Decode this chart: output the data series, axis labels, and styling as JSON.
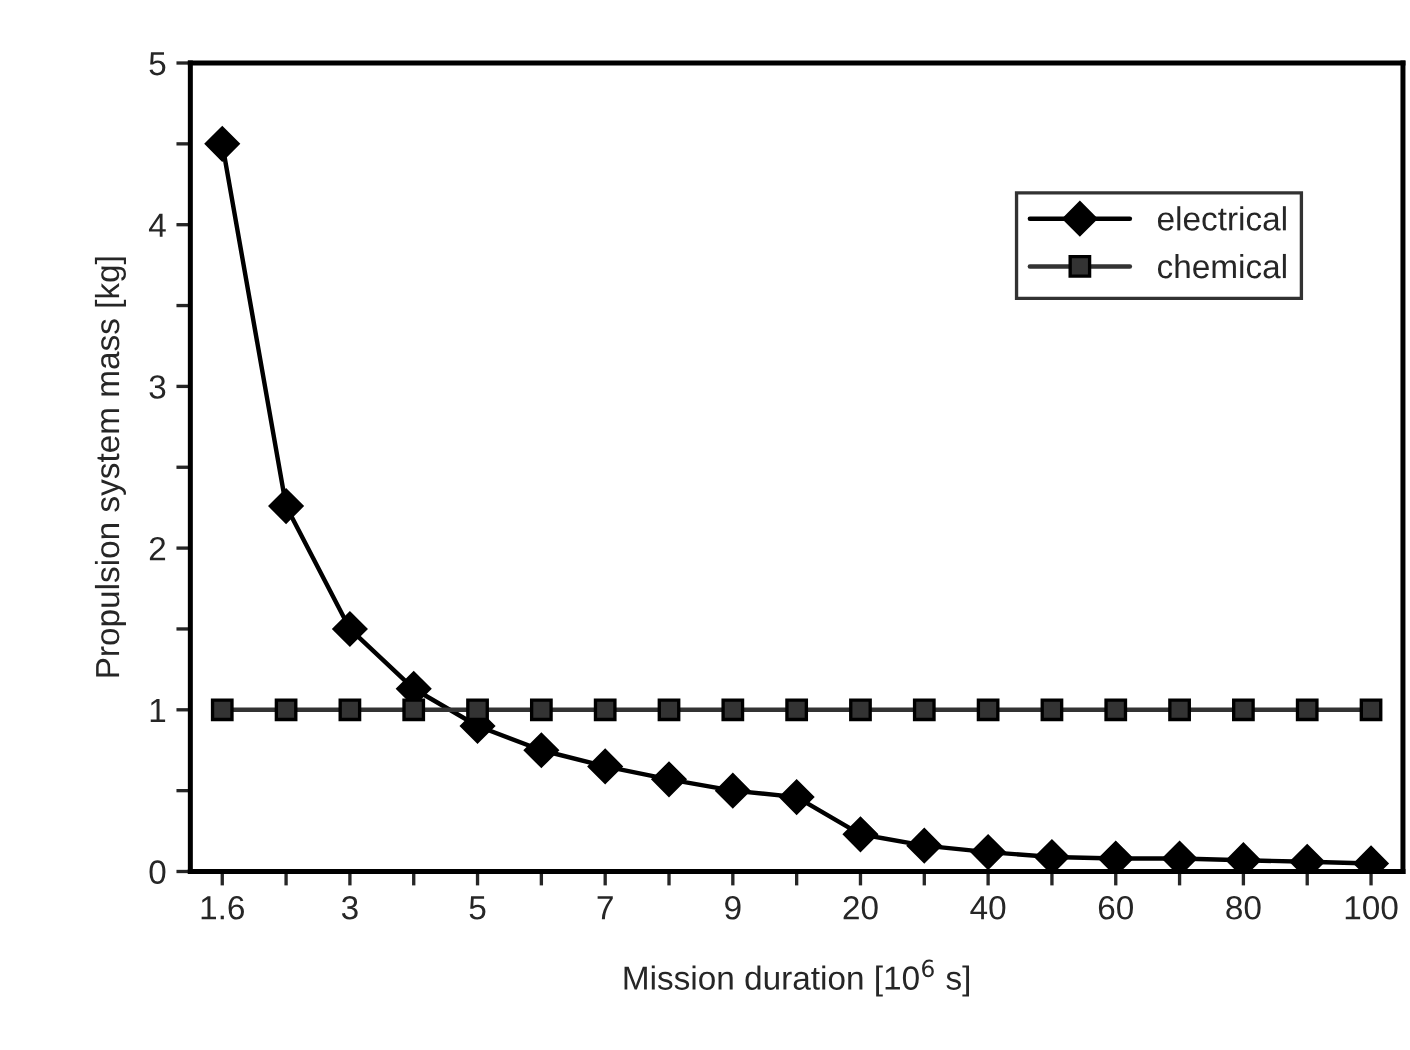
{
  "chart_data": {
    "type": "line",
    "xlabel": "Mission duration [10$^{6}$ s]",
    "ylabel": "Propulsion system mass [kg]",
    "categories": [
      "1.6",
      null,
      "3",
      null,
      "5",
      null,
      "7",
      null,
      "9",
      null,
      "20",
      null,
      "40",
      null,
      "60",
      null,
      "80",
      null,
      "100"
    ],
    "series": [
      {
        "name": "electrical",
        "color": "#000000",
        "marker": "diamond",
        "values": [
          4.5,
          2.26,
          1.5,
          1.13,
          0.9,
          0.75,
          0.65,
          0.57,
          0.5,
          0.46,
          0.23,
          0.16,
          0.12,
          0.09,
          0.08,
          0.08,
          0.07,
          0.06,
          0.05
        ]
      },
      {
        "name": "chemical",
        "color": "#333333",
        "marker": "square",
        "values": [
          1,
          1,
          1,
          1,
          1,
          1,
          1,
          1,
          1,
          1,
          1,
          1,
          1,
          1,
          1,
          1,
          1,
          1,
          1
        ]
      }
    ],
    "ylim": [
      0,
      5
    ],
    "yticks": [
      0,
      {
        "value": 0.5,
        "label": null
      },
      1,
      {
        "value": 1.5,
        "label": null
      },
      2,
      {
        "value": 2.5,
        "label": null
      },
      3,
      {
        "value": 3.5,
        "label": null
      },
      4,
      {
        "value": 4.5,
        "label": null
      },
      5
    ],
    "grid": false,
    "legend": "top right",
    "line_style": "solid"
  }
}
